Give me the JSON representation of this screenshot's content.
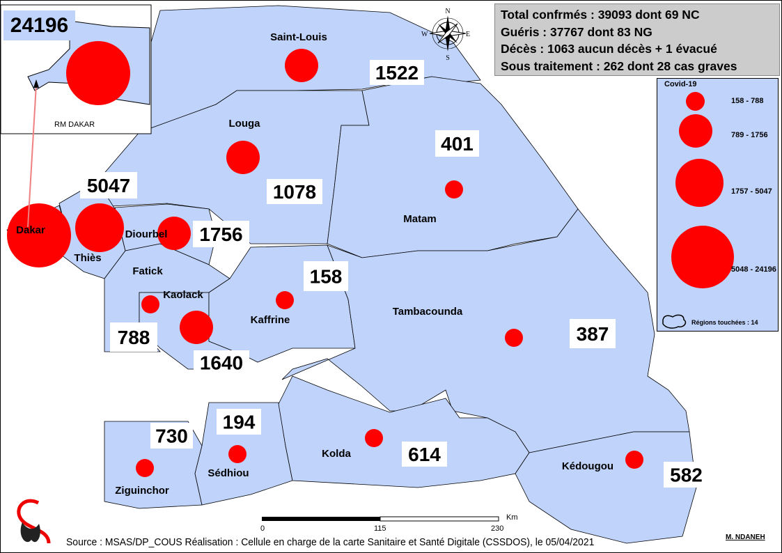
{
  "stats": {
    "confirmed": "Total confrmés : 39093 dont 69 NC",
    "recovered": "Guéris : 37767 dont 83 NG",
    "deaths": "Décès : 1063  aucun décès + 1 évacué",
    "under_treatment": "Sous traitement : 262 dont 28 cas graves"
  },
  "inset": {
    "label": "RM DAKAR",
    "value": "24196"
  },
  "regions": [
    {
      "name": "Saint-Louis",
      "value": "1522"
    },
    {
      "name": "Louga",
      "value": "1078"
    },
    {
      "name": "Matam",
      "value": "401"
    },
    {
      "name": "Dakar",
      "value": "24196"
    },
    {
      "name": "Thiès",
      "value": "5047"
    },
    {
      "name": "Diourbel",
      "value": "1756"
    },
    {
      "name": "Fatick",
      "value": "788"
    },
    {
      "name": "Kaolack",
      "value": "1640"
    },
    {
      "name": "Kaffrine",
      "value": "158"
    },
    {
      "name": "Tambacounda",
      "value": "387"
    },
    {
      "name": "Ziguinchor",
      "value": "730"
    },
    {
      "name": "Sédhiou",
      "value": "194"
    },
    {
      "name": "Kolda",
      "value": "614"
    },
    {
      "name": "Kédougou",
      "value": "582"
    }
  ],
  "legend": {
    "title": "Covid-19",
    "classes": [
      "158 - 788",
      "789 - 1756",
      "1757 - 5047",
      "5048 - 24196"
    ],
    "regions_affected": "Régions touchées : 14"
  },
  "scale": {
    "unit": "Km",
    "ticks": [
      "0",
      "115",
      "230"
    ]
  },
  "compass": {
    "n": "N",
    "s": "S",
    "e": "E",
    "w": "W"
  },
  "footer": {
    "source": "Source : MSAS/DP_COUS  Réalisation : Cellule en charge de la carte Sanitaire et Santé Digitale (CSSDOS), le 05/04/2021",
    "author": "M. NDANEH"
  },
  "colors": {
    "region_fill": "#bfd3fb",
    "bubble": "#ff0000",
    "stats_bg": "#cccccc"
  }
}
